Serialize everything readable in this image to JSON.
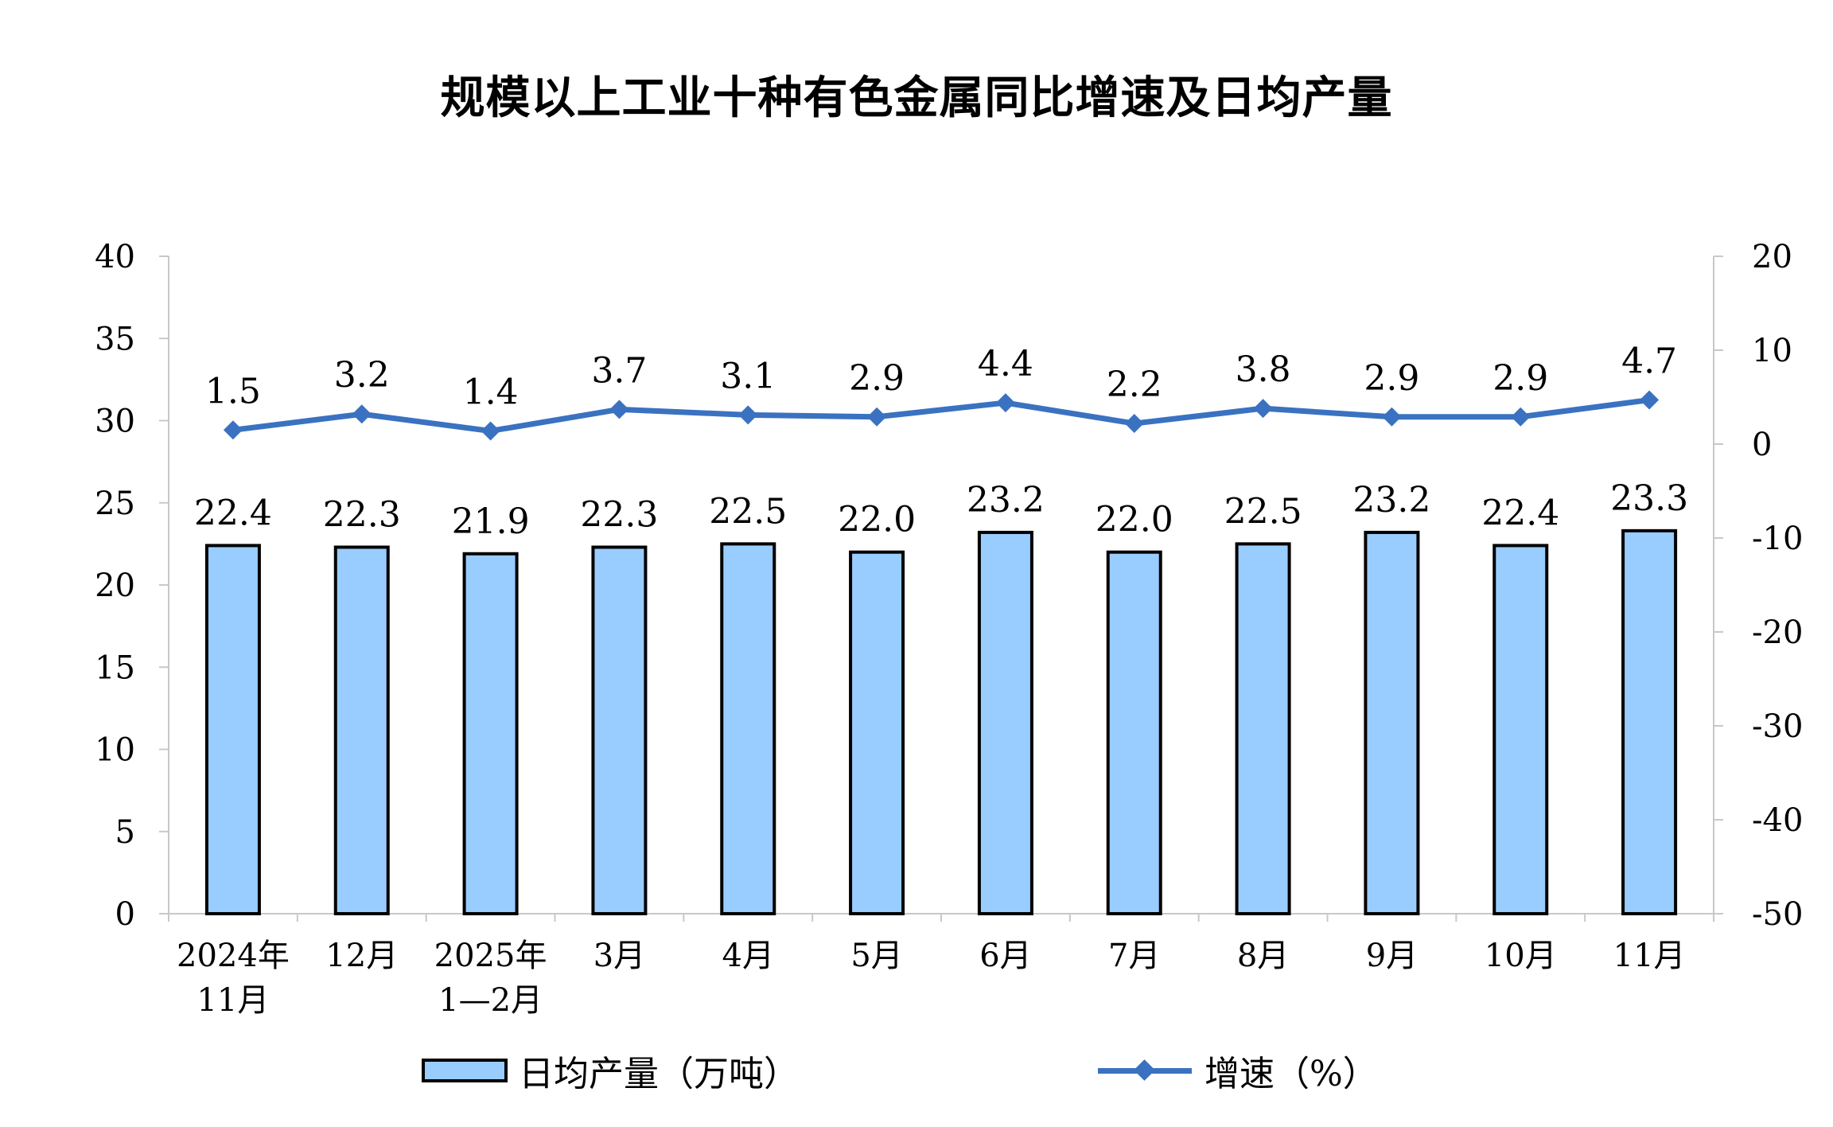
{
  "title": "规模以上工业十种有色金属同比增速及日均产量",
  "chart_data": {
    "type": "bar+line",
    "title": "规模以上工业十种有色金属同比增速及日均产量",
    "categories": [
      [
        "2024年",
        "11月"
      ],
      [
        "12月"
      ],
      [
        "2025年",
        "1—2月"
      ],
      [
        "3月"
      ],
      [
        "4月"
      ],
      [
        "5月"
      ],
      [
        "6月"
      ],
      [
        "7月"
      ],
      [
        "8月"
      ],
      [
        "9月"
      ],
      [
        "10月"
      ],
      [
        "11月"
      ]
    ],
    "series": [
      {
        "name": "日均产量（万吨）",
        "type": "bar",
        "axis": "left",
        "color": "#99ccff",
        "values": [
          22.4,
          22.3,
          21.9,
          22.3,
          22.5,
          22.0,
          23.2,
          22.0,
          22.5,
          23.2,
          22.4,
          23.3
        ],
        "labels": [
          "22.4",
          "22.3",
          "21.9",
          "22.3",
          "22.5",
          "22.0",
          "23.2",
          "22.0",
          "22.5",
          "23.2",
          "22.4",
          "23.3"
        ]
      },
      {
        "name": "增速（%）",
        "type": "line",
        "axis": "right",
        "color": "#3a72c1",
        "values": [
          1.5,
          3.2,
          1.4,
          3.7,
          3.1,
          2.9,
          4.4,
          2.2,
          3.8,
          2.9,
          2.9,
          4.7
        ],
        "labels": [
          "1.5",
          "3.2",
          "1.4",
          "3.7",
          "3.1",
          "2.9",
          "4.4",
          "2.2",
          "3.8",
          "2.9",
          "2.9",
          "4.7"
        ]
      }
    ],
    "y_left": {
      "min": 0,
      "max": 40,
      "ticks": [
        0,
        5,
        10,
        15,
        20,
        25,
        30,
        35,
        40
      ]
    },
    "y_right": {
      "min": -50,
      "max": 20,
      "ticks": [
        -50,
        -40,
        -30,
        -20,
        -10,
        0,
        10,
        20
      ]
    },
    "legend_position": "bottom",
    "grid": false
  },
  "legend": {
    "bar_label": "日均产量（万吨）",
    "line_label": "增速（%）"
  }
}
